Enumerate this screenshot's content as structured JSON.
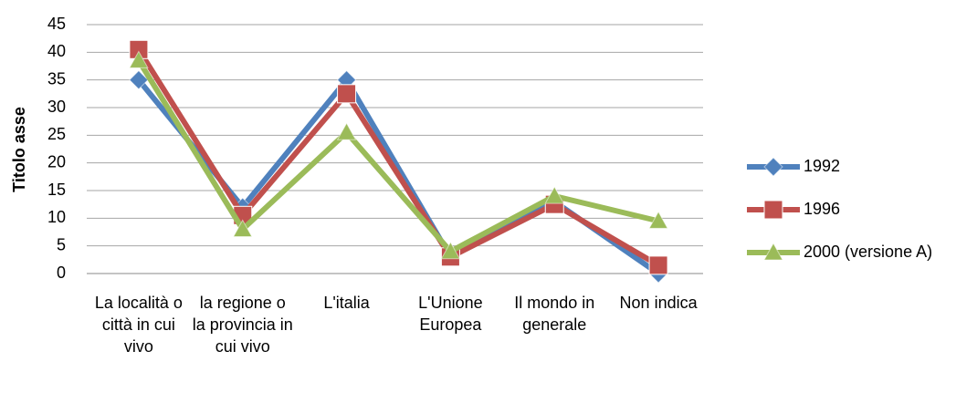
{
  "chart_data": {
    "type": "line",
    "y_label": "Titolo asse",
    "categories": [
      "La località o città in cui vivo",
      "la regione o la provincia in cui vivo",
      "L'italia",
      "L'Unione Europea",
      "Il mondo in generale",
      "Non indica"
    ],
    "series": [
      {
        "name": "1992",
        "color": "#4f81bd",
        "marker": "diamond",
        "values": [
          35,
          12,
          35,
          3,
          13,
          0
        ]
      },
      {
        "name": "1996",
        "color": "#c0504d",
        "marker": "square",
        "values": [
          40.5,
          10.5,
          32.5,
          3,
          12.5,
          1.5
        ]
      },
      {
        "name": "2000 (versione A)",
        "color": "#9bbb59",
        "marker": "triangle",
        "values": [
          38.5,
          8,
          25.5,
          4,
          14,
          9.5
        ]
      }
    ],
    "ylim": [
      0,
      45
    ],
    "yticks": [
      0,
      5,
      10,
      15,
      20,
      25,
      30,
      35,
      40,
      45
    ],
    "grid": true,
    "legend": "right"
  }
}
